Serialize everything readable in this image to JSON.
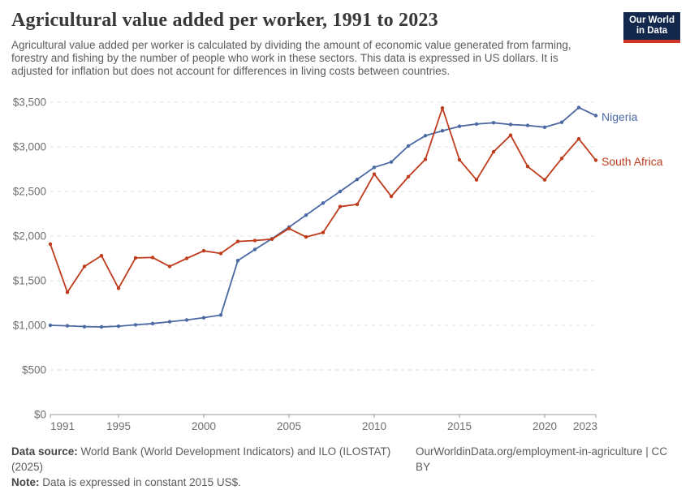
{
  "header": {
    "title": "Agricultural value added per worker, 1991 to 2023",
    "subtitle": "Agricultural value added per worker is calculated by dividing the amount of economic value generated from farming, forestry and fishing by the number of people who work in these sectors. This data is expressed in US dollars. It is adjusted for inflation but does not account for differences in living costs between countries.",
    "logo": {
      "line1": "Our World",
      "line2": "in Data",
      "bg_color": "#12294d",
      "stripe_color": "#d2342a"
    }
  },
  "chart_data": {
    "type": "line",
    "x": [
      1991,
      1992,
      1993,
      1994,
      1995,
      1996,
      1997,
      1998,
      1999,
      2000,
      2001,
      2002,
      2003,
      2004,
      2005,
      2006,
      2007,
      2008,
      2009,
      2010,
      2011,
      2012,
      2013,
      2014,
      2015,
      2016,
      2017,
      2018,
      2019,
      2020,
      2021,
      2022,
      2023
    ],
    "series": [
      {
        "name": "Nigeria",
        "color": "#4a69a2",
        "values": [
          1000,
          995,
          985,
          982,
          990,
          1005,
          1020,
          1040,
          1060,
          1085,
          1115,
          1725,
          1850,
          1970,
          2100,
          2235,
          2370,
          2500,
          2635,
          2770,
          2830,
          3010,
          3125,
          3180,
          3230,
          3255,
          3270,
          3250,
          3240,
          3220,
          3275,
          3440,
          3350
        ]
      },
      {
        "name": "South Africa",
        "color": "#be3b1c",
        "values": [
          1910,
          1370,
          1660,
          1780,
          1415,
          1755,
          1760,
          1660,
          1750,
          1835,
          1805,
          1940,
          1950,
          1965,
          2085,
          1990,
          2040,
          2330,
          2355,
          2695,
          2445,
          2665,
          2860,
          3435,
          2855,
          2630,
          2945,
          3130,
          2780,
          2630,
          2870,
          3090,
          2850
        ]
      }
    ],
    "title": "Agricultural value added per worker, 1991 to 2023",
    "xlabel": "",
    "ylabel": "",
    "xlim": [
      1991,
      2023
    ],
    "ylim": [
      0,
      3500
    ],
    "xticks": [
      1991,
      1995,
      2000,
      2005,
      2010,
      2015,
      2020,
      2023
    ],
    "yticks": [
      0,
      500,
      1000,
      1500,
      2000,
      2500,
      3000,
      3500
    ],
    "ytick_labels": [
      "$0",
      "$500",
      "$1,000",
      "$1,500",
      "$2,000",
      "$2,500",
      "$3,000",
      "$3,500"
    ],
    "grid": "horizontal-dashed",
    "legend_position": "right-of-line-ends",
    "axis_color": "#6e6e6e",
    "gridline_color": "#dcdcdc"
  },
  "footer": {
    "source_label": "Data source:",
    "source_text": "World Bank (World Development Indicators) and ILO (ILOSTAT) (2025)",
    "link_text": "OurWorldinData.org/employment-in-agriculture | CC BY",
    "note_label": "Note:",
    "note_text": "Data is expressed in constant 2015 US$."
  }
}
